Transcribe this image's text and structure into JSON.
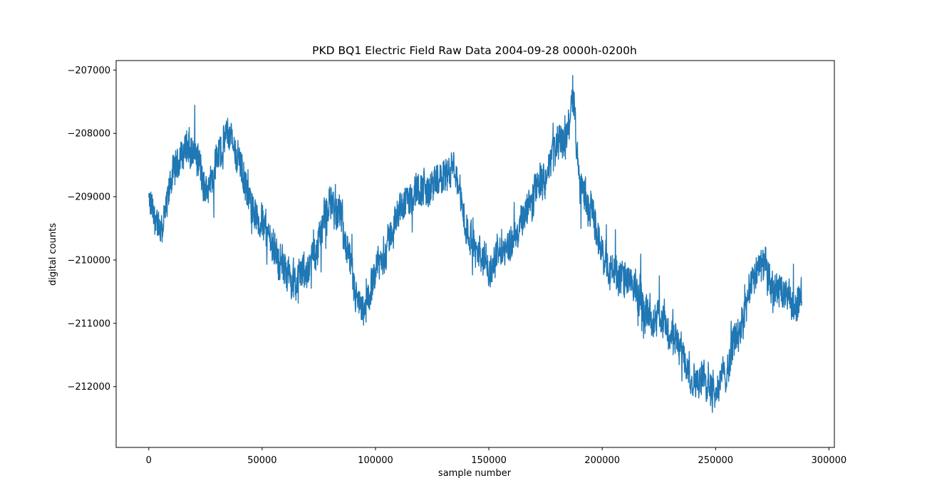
{
  "chart_data": {
    "type": "line",
    "title": "PKD BQ1 Electric Field Raw Data 2004-09-28 0000h-0200h",
    "xlabel": "sample number",
    "ylabel": "digital counts",
    "xlim": [
      -14400,
      302400
    ],
    "ylim": [
      -212960,
      -206850
    ],
    "x_ticks": [
      0,
      50000,
      100000,
      150000,
      200000,
      250000,
      300000
    ],
    "x_tick_labels": [
      "0",
      "50000",
      "100000",
      "150000",
      "200000",
      "250000",
      "300000"
    ],
    "y_ticks": [
      -207000,
      -208000,
      -209000,
      -210000,
      -211000,
      -212000
    ],
    "y_tick_labels": [
      "−207000",
      "−208000",
      "−209000",
      "−210000",
      "−211000",
      "−212000"
    ],
    "grid": false,
    "legend": "none",
    "series": [
      {
        "color": "#1f77b4",
        "x": [
          0,
          5000,
          10000,
          15000,
          20000,
          25000,
          30000,
          35000,
          40000,
          45000,
          50000,
          55000,
          60000,
          65000,
          70000,
          75000,
          80000,
          85000,
          90000,
          95000,
          100000,
          105000,
          110000,
          115000,
          120000,
          125000,
          130000,
          135000,
          140000,
          145000,
          150000,
          155000,
          160000,
          165000,
          170000,
          175000,
          180000,
          185000,
          187000,
          190000,
          195000,
          200000,
          205000,
          210000,
          215000,
          220000,
          225000,
          230000,
          235000,
          240000,
          245000,
          250000,
          255000,
          260000,
          265000,
          270000,
          275000,
          280000,
          285000,
          288000
        ],
        "values": [
          -209100,
          -209600,
          -208700,
          -208200,
          -208300,
          -208900,
          -208300,
          -208000,
          -208400,
          -209100,
          -209500,
          -209800,
          -210100,
          -210300,
          -210100,
          -209700,
          -209100,
          -209400,
          -210400,
          -210800,
          -210300,
          -209800,
          -209300,
          -209000,
          -208900,
          -208800,
          -208700,
          -208600,
          -209400,
          -209900,
          -210100,
          -209900,
          -209700,
          -209400,
          -208900,
          -208600,
          -208200,
          -208000,
          -207300,
          -208800,
          -209200,
          -209900,
          -210200,
          -210300,
          -210500,
          -210700,
          -210900,
          -211200,
          -211500,
          -211800,
          -211900,
          -212000,
          -211700,
          -211100,
          -210500,
          -210100,
          -210400,
          -210600,
          -210700,
          -210500
        ]
      }
    ]
  }
}
